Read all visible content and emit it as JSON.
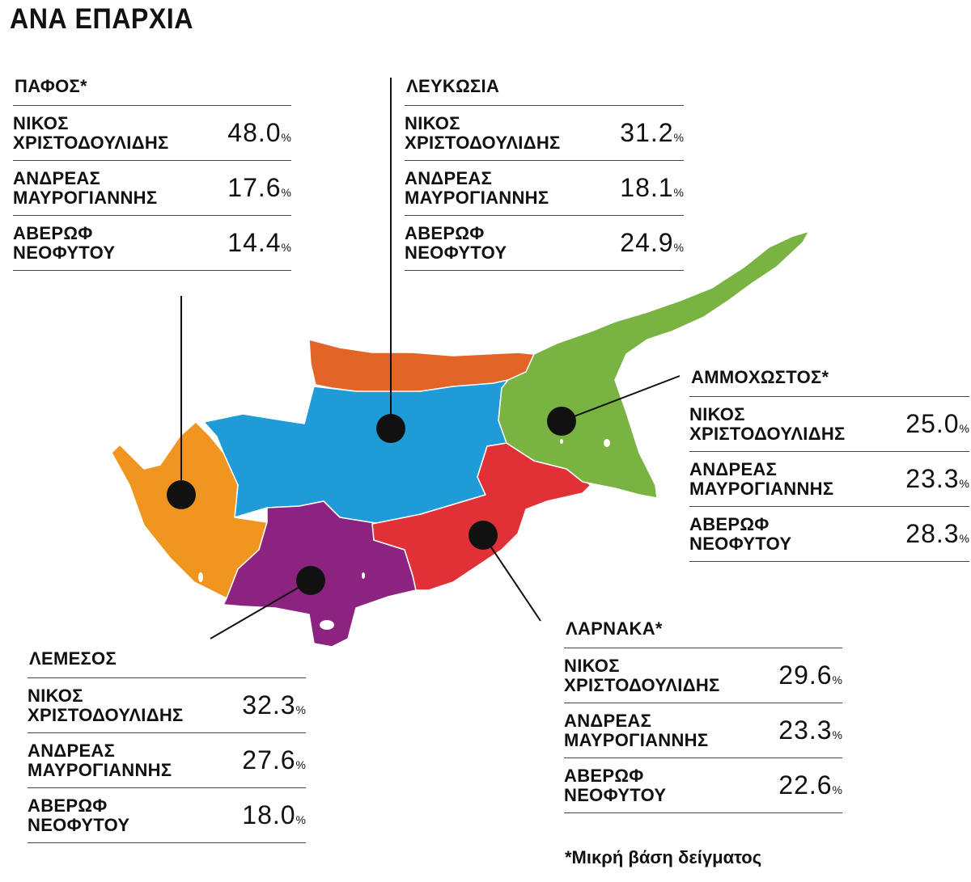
{
  "title": "ΑΝΑ ΕΠΑΡΧΙΑ",
  "footnote": "*Μικρή βάση δείγματος",
  "unit": "%",
  "colors": {
    "pafos": "#f0951f",
    "lefkosia": "#1f9bd8",
    "occupied_north": "#e26427",
    "ammochostos": "#79b342",
    "larnaka": "#e03136",
    "lemesos": "#8c2380",
    "marker": "#111111"
  },
  "districts": [
    {
      "id": "pafos",
      "name": "ΠΑΦΟΣ*",
      "rows": [
        {
          "line1": "ΝΙΚΟΣ",
          "line2": "ΧΡΙΣΤΟΔΟΥΛΙΔΗΣ",
          "value": "48.0"
        },
        {
          "line1": "ΑΝΔΡΕΑΣ",
          "line2": "ΜΑΥΡΟΓΙΑΝΝΗΣ",
          "value": "17.6"
        },
        {
          "line1": "ΑΒΕΡΩΦ",
          "line2": "ΝΕΟΦΥΤΟΥ",
          "value": "14.4"
        }
      ]
    },
    {
      "id": "lefkosia",
      "name": "ΛΕΥΚΩΣΙΑ",
      "rows": [
        {
          "line1": "ΝΙΚΟΣ",
          "line2": "ΧΡΙΣΤΟΔΟΥΛΙΔΗΣ",
          "value": "31.2"
        },
        {
          "line1": "ΑΝΔΡΕΑΣ",
          "line2": "ΜΑΥΡΟΓΙΑΝΝΗΣ",
          "value": "18.1"
        },
        {
          "line1": "ΑΒΕΡΩΦ",
          "line2": "ΝΕΟΦΥΤΟΥ",
          "value": "24.9"
        }
      ]
    },
    {
      "id": "ammochostos",
      "name": "ΑΜΜΟΧΩΣΤΟΣ*",
      "rows": [
        {
          "line1": "ΝΙΚΟΣ",
          "line2": "ΧΡΙΣΤΟΔΟΥΛΙΔΗΣ",
          "value": "25.0"
        },
        {
          "line1": "ΑΝΔΡΕΑΣ",
          "line2": "ΜΑΥΡΟΓΙΑΝΝΗΣ",
          "value": "23.3"
        },
        {
          "line1": "ΑΒΕΡΩΦ",
          "line2": "ΝΕΟΦΥΤΟΥ",
          "value": "28.3"
        }
      ]
    },
    {
      "id": "lemesos",
      "name": "ΛΕΜΕΣΟΣ",
      "rows": [
        {
          "line1": "ΝΙΚΟΣ",
          "line2": "ΧΡΙΣΤΟΔΟΥΛΙΔΗΣ",
          "value": "32.3"
        },
        {
          "line1": "ΑΝΔΡΕΑΣ",
          "line2": "ΜΑΥΡΟΓΙΑΝΝΗΣ",
          "value": "27.6"
        },
        {
          "line1": "ΑΒΕΡΩΦ",
          "line2": "ΝΕΟΦΥΤΟΥ",
          "value": "18.0"
        }
      ]
    },
    {
      "id": "larnaka",
      "name": "ΛΑΡΝΑΚΑ*",
      "rows": [
        {
          "line1": "ΝΙΚΟΣ",
          "line2": "ΧΡΙΣΤΟΔΟΥΛΙΔΗΣ",
          "value": "29.6"
        },
        {
          "line1": "ΑΝΔΡΕΑΣ",
          "line2": "ΜΑΥΡΟΓΙΑΝΝΗΣ",
          "value": "23.3"
        },
        {
          "line1": "ΑΒΕΡΩΦ",
          "line2": "ΝΕΟΦΥΤΟΥ",
          "value": "22.6"
        }
      ]
    }
  ]
}
